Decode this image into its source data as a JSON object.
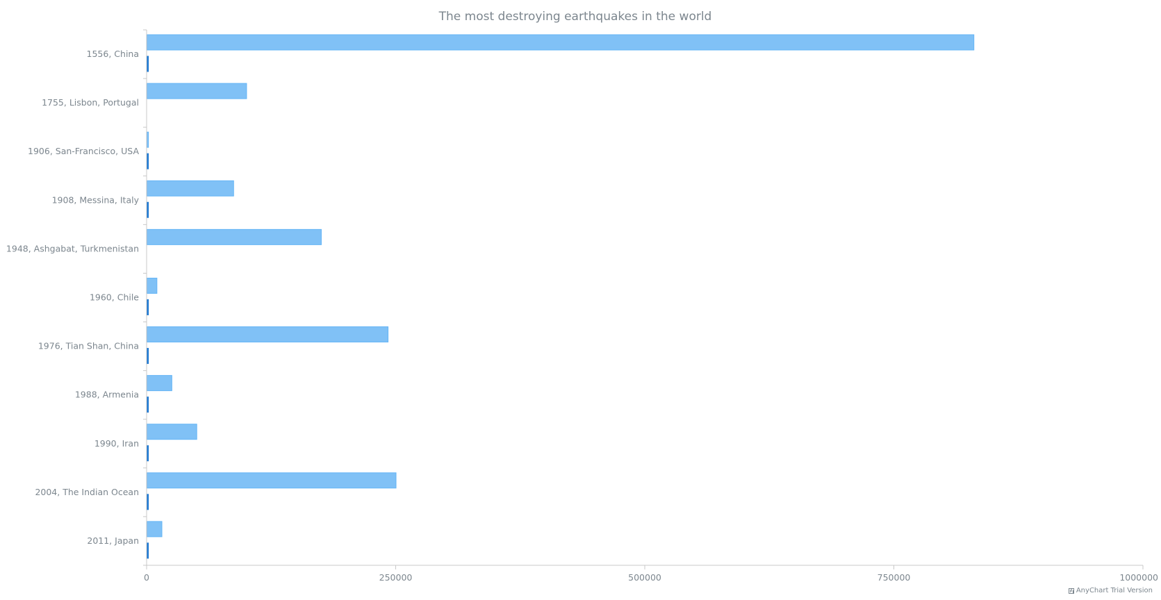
{
  "chart_data": {
    "type": "bar",
    "orientation": "horizontal",
    "title": "The most destroying earthquakes in the world",
    "categories": [
      "1556, China",
      "1755, Lisbon, Portugal",
      "1906, San-Francisco, USA",
      "1908, Messina, Italy",
      "1948, Ashgabat, Turkmenistan",
      "1960, Chile",
      "1976, Tian Shan, China",
      "1988, Armenia",
      "1990, Iran",
      "2004, The Indian Ocean",
      "2011, Japan"
    ],
    "series": [
      {
        "color": "#80c1f6",
        "stroke": "#64b5f6",
        "values": [
          830000,
          100000,
          1500,
          87000,
          175000,
          10000,
          242000,
          25000,
          50000,
          250000,
          15000
        ]
      },
      {
        "color": "#1976d2",
        "stroke": "#1976d2",
        "values": [
          1000,
          0,
          800,
          600,
          0,
          800,
          600,
          400,
          500,
          700,
          600
        ]
      }
    ],
    "xlim": [
      0,
      1000000
    ],
    "ticks": [
      0,
      250000,
      500000,
      750000,
      1000000
    ],
    "tick_labels": [
      "0",
      "250000",
      "500000",
      "750000",
      "1000000"
    ],
    "grid": false,
    "legend": "none"
  },
  "footer": {
    "watermark": "AnyChart Trial Version"
  }
}
